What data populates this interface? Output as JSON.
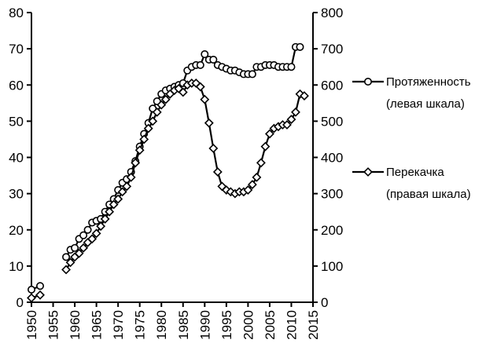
{
  "chart_data": {
    "type": "line",
    "x_axis": {
      "min": 1950,
      "max": 2015,
      "ticks": [
        1950,
        1955,
        1960,
        1965,
        1970,
        1975,
        1980,
        1985,
        1990,
        1995,
        2000,
        2005,
        2010,
        2015
      ],
      "tick_label_rotation": "vertical"
    },
    "y_axis_left": {
      "min": 0,
      "max": 80,
      "ticks": [
        0,
        10,
        20,
        30,
        40,
        50,
        60,
        70,
        80
      ]
    },
    "y_axis_right": {
      "min": 0,
      "max": 800,
      "ticks": [
        0,
        100,
        200,
        300,
        400,
        500,
        600,
        700,
        800
      ]
    },
    "grid": false,
    "legend_placement": "right",
    "series": [
      {
        "name": "Протяженность",
        "name_line2": "(левая шкала)",
        "axis": "left",
        "marker": "circle",
        "segments": [
          [
            [
              1950,
              3.5
            ],
            [
              1952,
              4.5
            ]
          ],
          [
            [
              1958,
              12.5
            ],
            [
              1959,
              14.5
            ],
            [
              1960,
              15
            ],
            [
              1961,
              17.5
            ],
            [
              1962,
              18.5
            ],
            [
              1963,
              20
            ],
            [
              1964,
              22
            ],
            [
              1965,
              22.5
            ],
            [
              1966,
              23
            ],
            [
              1967,
              25
            ],
            [
              1968,
              27
            ],
            [
              1969,
              28.5
            ],
            [
              1970,
              31
            ],
            [
              1971,
              33
            ],
            [
              1972,
              34
            ],
            [
              1973,
              36
            ],
            [
              1974,
              39
            ],
            [
              1975,
              43
            ],
            [
              1976,
              46.5
            ],
            [
              1977,
              49.5
            ],
            [
              1978,
              53.5
            ],
            [
              1979,
              55.5
            ],
            [
              1980,
              57.5
            ],
            [
              1981,
              58.5
            ],
            [
              1982,
              59
            ],
            [
              1983,
              59.5
            ],
            [
              1984,
              60
            ],
            [
              1985,
              60.5
            ],
            [
              1986,
              64
            ],
            [
              1987,
              65
            ],
            [
              1988,
              65.5
            ],
            [
              1989,
              65.5
            ],
            [
              1990,
              68.5
            ],
            [
              1991,
              67
            ],
            [
              1992,
              67
            ],
            [
              1993,
              65.5
            ],
            [
              1994,
              65
            ],
            [
              1995,
              64.5
            ],
            [
              1996,
              64
            ],
            [
              1997,
              64
            ],
            [
              1998,
              63.5
            ],
            [
              1999,
              63
            ],
            [
              2000,
              63
            ],
            [
              2001,
              63
            ],
            [
              2002,
              65
            ],
            [
              2003,
              65
            ],
            [
              2004,
              65.5
            ],
            [
              2005,
              65.5
            ],
            [
              2006,
              65.5
            ],
            [
              2007,
              65
            ],
            [
              2008,
              65
            ],
            [
              2009,
              65
            ],
            [
              2010,
              65
            ],
            [
              2011,
              70.5
            ],
            [
              2012,
              70.5
            ]
          ]
        ]
      },
      {
        "name": "Перекачка",
        "name_line2": "(правая шкала)",
        "axis": "right",
        "marker": "diamond",
        "segments": [
          [
            [
              1950,
              12
            ],
            [
              1952,
              20
            ]
          ],
          [
            [
              1958,
              90
            ],
            [
              1959,
              110
            ],
            [
              1960,
              125
            ],
            [
              1961,
              135
            ],
            [
              1962,
              150
            ],
            [
              1963,
              165
            ],
            [
              1964,
              175
            ],
            [
              1965,
              190
            ],
            [
              1966,
              210
            ],
            [
              1967,
              230
            ],
            [
              1968,
              250
            ],
            [
              1969,
              270
            ],
            [
              1970,
              285
            ],
            [
              1971,
              305
            ],
            [
              1972,
              320
            ],
            [
              1973,
              345
            ],
            [
              1974,
              385
            ],
            [
              1975,
              420
            ],
            [
              1976,
              450
            ],
            [
              1977,
              480
            ],
            [
              1978,
              500
            ],
            [
              1979,
              525
            ],
            [
              1980,
              545
            ],
            [
              1981,
              560
            ],
            [
              1982,
              575
            ],
            [
              1983,
              585
            ],
            [
              1984,
              590
            ],
            [
              1985,
              580
            ],
            [
              1986,
              600
            ],
            [
              1987,
              605
            ],
            [
              1988,
              605
            ],
            [
              1989,
              595
            ],
            [
              1990,
              560
            ],
            [
              1991,
              495
            ],
            [
              1992,
              425
            ],
            [
              1993,
              360
            ],
            [
              1994,
              320
            ],
            [
              1995,
              310
            ],
            [
              1996,
              305
            ],
            [
              1997,
              300
            ],
            [
              1998,
              305
            ],
            [
              1999,
              305
            ],
            [
              2000,
              310
            ],
            [
              2001,
              325
            ],
            [
              2002,
              345
            ],
            [
              2003,
              385
            ],
            [
              2004,
              430
            ],
            [
              2005,
              465
            ],
            [
              2006,
              480
            ],
            [
              2007,
              485
            ],
            [
              2008,
              490
            ],
            [
              2009,
              490
            ],
            [
              2010,
              505
            ],
            [
              2011,
              525
            ],
            [
              2012,
              575
            ],
            [
              2013,
              570
            ]
          ]
        ]
      }
    ]
  }
}
